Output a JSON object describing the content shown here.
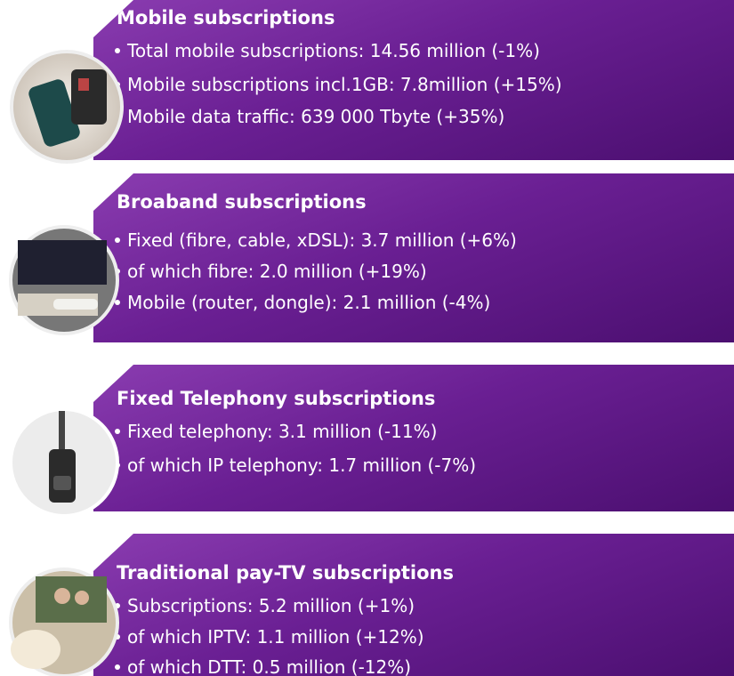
{
  "sections": [
    {
      "title": "Mobile subscriptions",
      "items": [
        "Total mobile subscriptions: 14.56 million (-1%)",
        "Mobile subscriptions incl.1GB: 7.8million (+15%)",
        "Mobile data traffic: 639 000 Tbyte (+35%)"
      ]
    },
    {
      "title": "Broaband subscriptions",
      "items": [
        "Fixed (fibre, cable, xDSL): 3.7 million (+6%)",
        "of which fibre: 2.0 million (+19%)",
        "Mobile (router, dongle): 2.1 million (-4%)"
      ]
    },
    {
      "title": "Fixed Telephony subscriptions",
      "items": [
        "Fixed telephony:  3.1 million (-11%)",
        "of which IP telephony: 1.7 million (-7%)"
      ]
    },
    {
      "title": "Traditional pay-TV subscriptions",
      "items": [
        "Subscriptions:  5.2 million (+1%)",
        "of which IPTV: 1.1 million (+12%)",
        "of which DTT: 0.5 million (-12%)"
      ]
    }
  ]
}
